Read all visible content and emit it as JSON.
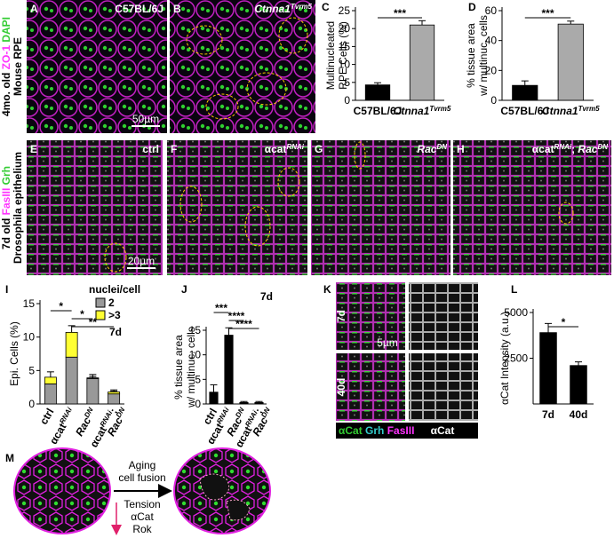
{
  "side_labels": [
    {
      "lines": [
        [
          {
            "text": "4mo. old "
          },
          {
            "text": "ZO-1",
            "color": "#ff33ff"
          },
          {
            "text": " DAPI",
            "color": "#33cc33"
          }
        ],
        [
          {
            "text": "Mouse RPE"
          }
        ]
      ]
    },
    {
      "lines": [
        [
          {
            "text": "7d old "
          },
          {
            "text": "FasIII",
            "color": "#ff33ff"
          },
          {
            "text": " Grh",
            "color": "#33cc33"
          }
        ],
        [
          {
            "text": "Drosophila epithelium"
          }
        ]
      ]
    }
  ],
  "image_panels": [
    {
      "letter": "A",
      "label": [
        {
          "text": "C57BL/6J"
        }
      ],
      "scale_bar": "50µm"
    },
    {
      "letter": "B",
      "label": [
        {
          "text": "Ctnna1",
          "italic": true
        },
        {
          "text": "Tvrm5",
          "italic": true,
          "sup": true
        }
      ]
    },
    {
      "letter": "E",
      "label": [
        {
          "text": "ctrl"
        }
      ],
      "scale_bar": "20µm"
    },
    {
      "letter": "F",
      "label": [
        {
          "text": "αcat"
        },
        {
          "text": "RNAi",
          "sup": true,
          "italic": true
        }
      ]
    },
    {
      "letter": "G",
      "label": [
        {
          "text": "Rac",
          "italic": true
        },
        {
          "text": "DN",
          "sup": true,
          "italic": true
        }
      ]
    },
    {
      "letter": "H",
      "label": [
        {
          "text": "αcat"
        },
        {
          "text": "RNAi",
          "sup": true,
          "italic": true
        },
        {
          "text": "; "
        },
        {
          "text": "Rac",
          "italic": true
        },
        {
          "text": "DN",
          "sup": true,
          "italic": true
        }
      ]
    }
  ],
  "panel_k": {
    "letter": "K",
    "rows": [
      "7d",
      "40d"
    ],
    "scale_bar": "5µm",
    "channels": [
      {
        "text": "αCat",
        "color": "#33cc33"
      },
      {
        "text": " Grh",
        "color": "#33cccc"
      },
      {
        "text": " FasIII",
        "color": "#ff33ff"
      }
    ],
    "channel_single": "αCat"
  },
  "chart_data": [
    {
      "letter": "C",
      "type": "bar",
      "ylabel": [
        "Multinucleated",
        "RPE Cells (%)"
      ],
      "categories": [
        [
          [
            {
              "text": "C57BL/6J",
              "bold": true
            }
          ]
        ],
        [
          [
            {
              "text": "Ctnna1",
              "italic": true,
              "bold": true
            },
            {
              "text": "Tvrm5",
              "sup": true,
              "italic": true,
              "bold": true
            }
          ]
        ]
      ],
      "values": [
        4.3,
        21
      ],
      "errors": [
        0.6,
        1.2
      ],
      "colors": [
        "#000000",
        "#aaaaaa"
      ],
      "ylim": [
        0,
        25
      ],
      "yticks": [
        0,
        5,
        10,
        15,
        20,
        25
      ],
      "significance": [
        {
          "label": "***",
          "from": 0,
          "to": 1
        }
      ]
    },
    {
      "letter": "D",
      "type": "bar",
      "ylabel": [
        "% tissue area",
        "w/ multinuc. cells"
      ],
      "categories": [
        [
          [
            {
              "text": "C57BL/6J",
              "bold": true
            }
          ]
        ],
        [
          [
            {
              "text": "Ctnna1",
              "italic": true,
              "bold": true
            },
            {
              "text": "Tvrm5",
              "sup": true,
              "italic": true,
              "bold": true
            }
          ]
        ]
      ],
      "values": [
        10,
        51
      ],
      "errors": [
        3,
        2
      ],
      "colors": [
        "#000000",
        "#aaaaaa"
      ],
      "ylim": [
        0,
        60
      ],
      "yticks": [
        0,
        20,
        40,
        60
      ],
      "significance": [
        {
          "label": "***",
          "from": 0,
          "to": 1
        }
      ]
    },
    {
      "letter": "I",
      "type": "stacked_bar",
      "ylabel": [
        "Epi. Cells (%)"
      ],
      "rotated_labels": true,
      "categories": [
        [
          [
            {
              "text": "ctrl",
              "bold": true
            }
          ]
        ],
        [
          [
            {
              "text": "αcat",
              "bold": true
            },
            {
              "text": "RNAi",
              "sup": true,
              "italic": true,
              "bold": true
            }
          ]
        ],
        [
          [
            {
              "text": "Rac",
              "italic": true,
              "bold": true
            },
            {
              "text": "DN",
              "sup": true,
              "italic": true,
              "bold": true
            }
          ]
        ],
        [
          [
            {
              "text": "αcat",
              "bold": true
            },
            {
              "text": "RNAi",
              "sup": true,
              "italic": true,
              "bold": true
            },
            {
              "text": ";",
              "bold": true
            }
          ],
          [
            {
              "text": "Rac",
              "italic": true,
              "bold": true
            },
            {
              "text": "DN",
              "sup": true,
              "italic": true,
              "bold": true
            }
          ]
        ]
      ],
      "series": [
        {
          "name": "2",
          "color": "#999999",
          "values": [
            3,
            7,
            3.8,
            1.5
          ],
          "errors": [
            0.8,
            1.5,
            0.6,
            0.4
          ]
        },
        {
          "name": ">3",
          "color": "#ffff33",
          "values": [
            1,
            3.7,
            0.1,
            0.3
          ],
          "errors": [
            0.8,
            1,
            0.2,
            0.3
          ]
        }
      ],
      "legend_title": "nuclei/cell",
      "annotation": "7d",
      "ylim": [
        0,
        15
      ],
      "yticks": [
        0,
        5,
        10,
        15
      ],
      "significance": [
        {
          "label": "*",
          "from": 0,
          "to": 1
        },
        {
          "label": "*",
          "from": 1,
          "to": 2
        },
        {
          "label": "**",
          "from": 1,
          "to": 3
        }
      ]
    },
    {
      "letter": "J",
      "type": "bar",
      "ylabel": [
        "% tissue area",
        "w/ multinuc. cells"
      ],
      "rotated_labels": true,
      "categories": [
        [
          [
            {
              "text": "ctrl",
              "bold": true
            }
          ]
        ],
        [
          [
            {
              "text": "αcat",
              "bold": true
            },
            {
              "text": "RNAi",
              "sup": true,
              "italic": true,
              "bold": true
            }
          ]
        ],
        [
          [
            {
              "text": "Rac",
              "italic": true,
              "bold": true
            },
            {
              "text": "DN",
              "sup": true,
              "italic": true,
              "bold": true
            }
          ]
        ],
        [
          [
            {
              "text": "αcat",
              "bold": true
            },
            {
              "text": "RNAi",
              "sup": true,
              "italic": true,
              "bold": true
            },
            {
              "text": ";",
              "bold": true
            }
          ],
          [
            {
              "text": "Rac",
              "italic": true,
              "bold": true
            },
            {
              "text": "DN",
              "sup": true,
              "italic": true,
              "bold": true
            }
          ]
        ]
      ],
      "values": [
        2.4,
        14,
        0.3,
        0.3
      ],
      "errors": [
        1.5,
        1.5,
        0.2,
        0.2
      ],
      "color": "#000000",
      "annotation": "7d",
      "ylim": [
        0,
        15
      ],
      "yticks": [
        0,
        5,
        10,
        15
      ],
      "significance": [
        {
          "label": "***",
          "from": 0,
          "to": 1
        },
        {
          "label": "****",
          "from": 1,
          "to": 2
        },
        {
          "label": "****",
          "from": 1,
          "to": 3
        }
      ]
    },
    {
      "letter": "L",
      "type": "bar",
      "ylabel": [
        "αCat Intensity (a.u.)"
      ],
      "categories": [
        [
          [
            {
              "text": "7d",
              "bold": true
            }
          ]
        ],
        [
          [
            {
              "text": "40d",
              "bold": true
            }
          ]
        ]
      ],
      "values": [
        3900,
        2100
      ],
      "errors": [
        500,
        200
      ],
      "color": "#000000",
      "ylim": [
        0,
        5000
      ],
      "yticks": [
        2500,
        5000
      ],
      "significance": [
        {
          "label": "*",
          "from": 0,
          "to": 1
        }
      ]
    }
  ],
  "diagram": {
    "letter": "M",
    "arrow_label": [
      "Aging",
      "cell fusion"
    ],
    "force_label": [
      "Tension",
      "αCat",
      "Rok"
    ]
  }
}
